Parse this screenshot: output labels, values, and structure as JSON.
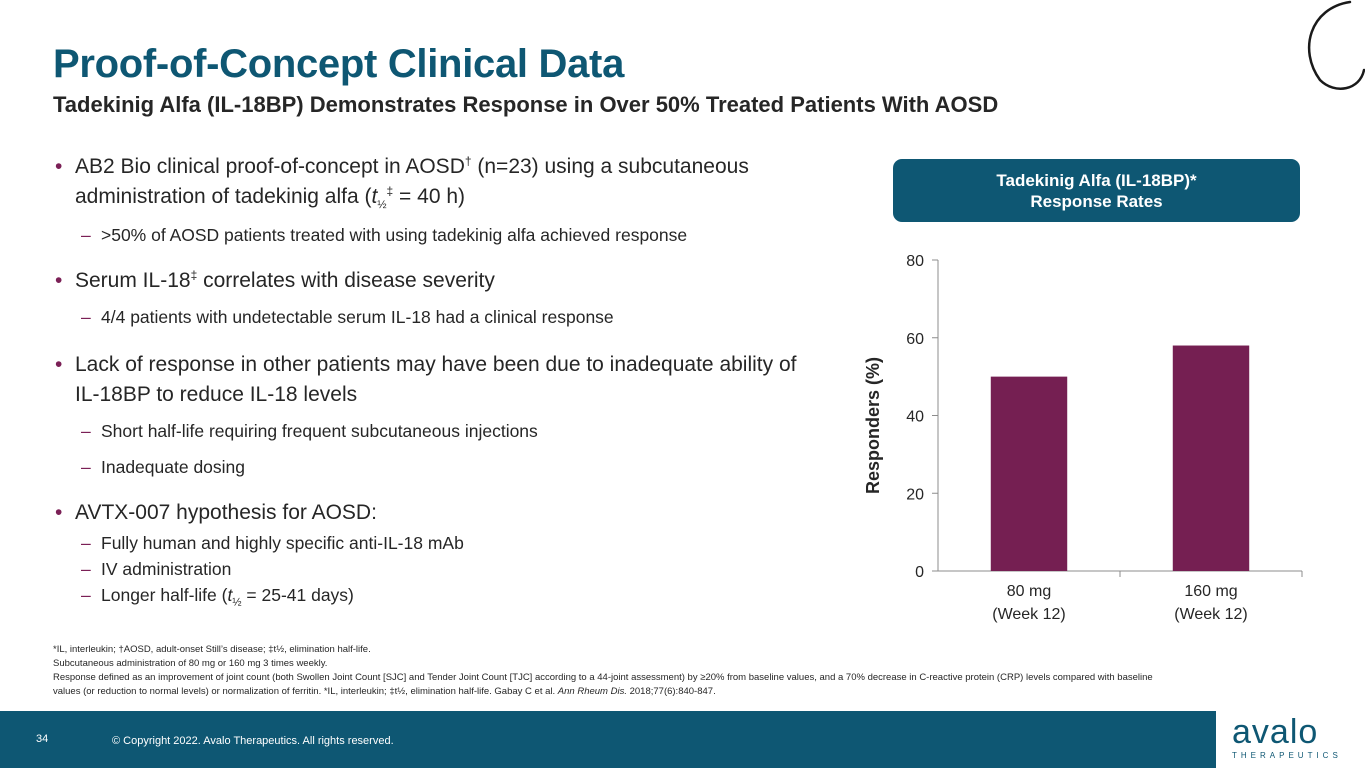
{
  "header": {
    "title": "Proof-of-Concept Clinical Data",
    "subtitle": "Tadekinig Alfa (IL-18BP) Demonstrates Response in Over 50% Treated Patients With AOSD"
  },
  "bullets": {
    "b1_text_a": "AB2 Bio clinical proof-of-concept in AOSD",
    "b1_sup": "†",
    "b1_text_b": " (n=23) using a subcutaneous administration of tadekinig alfa (",
    "b1_t": "t",
    "b1_half": "½",
    "b1_sup2": "‡",
    "b1_text_c": " = 40 h)",
    "b1_sub1": ">50% of AOSD patients treated with using tadekinig alfa achieved response",
    "b2_text_a": "Serum IL-18",
    "b2_sup": "‡",
    "b2_text_b": " correlates with disease severity",
    "b2_sub1": "4/4 patients with undetectable serum IL-18  had a clinical response",
    "b3_text": "Lack of response in other patients may have been due to inadequate ability of IL-18BP to reduce IL-18 levels",
    "b3_sub1": "Short half-life requiring frequent subcutaneous injections",
    "b3_sub2": "Inadequate dosing",
    "b4_text": "AVTX-007 hypothesis for AOSD:",
    "b4_sub1": "Fully human and highly specific anti-IL-18 mAb",
    "b4_sub2": "IV administration",
    "b4_sub3_a": "Longer half-life (",
    "b4_sub3_t": "t",
    "b4_sub3_half": "½",
    "b4_sub3_b": " = 25-41 days)",
    "bullet_glyph": "•",
    "dash_glyph": "–"
  },
  "chart_header": {
    "line1": "Tadekinig Alfa (IL-18BP)*",
    "line2": "Response Rates"
  },
  "chart_data": {
    "type": "bar",
    "categories": [
      "80 mg\n(Week 12)",
      "160 mg\n(Week 12)"
    ],
    "values": [
      50,
      58
    ],
    "ylabel": "Responders (%)",
    "ylim": [
      0,
      80
    ],
    "yticks": [
      "0",
      "20",
      "40",
      "60",
      "80"
    ],
    "bar_color": "#751f52",
    "grid": false
  },
  "footnotes": {
    "line1": "*IL, interleukin; †AOSD, adult-onset Still’s disease; ‡t½, elimination half-life.",
    "line2": "Subcutaneous administration of 80 mg or 160 mg 3 times weekly.",
    "line3": "Response defined as an improvement of joint count (both Swollen Joint Count [SJC] and Tender Joint Count [TJC] according to a 44-joint assessment) by ≥20% from baseline values, and a 70% decrease in C-reactive protein (CRP) levels compared with baseline values (or reduction to normal levels) or normalization of ferritin. *IL, interleukin; ‡t½, elimination half-life. Gabay C et al. ",
    "journal": "Ann Rheum Dis.",
    "citation_tail": " 2018;77(6):840-847."
  },
  "footer": {
    "page_number": "34",
    "copyright": "© Copyright 2022. Avalo Therapeutics. All rights reserved.",
    "logo_word": "avalo",
    "logo_sub": "THERAPEUTICS"
  },
  "colors": {
    "brand": "#0e5773",
    "accent": "#7b2056"
  }
}
